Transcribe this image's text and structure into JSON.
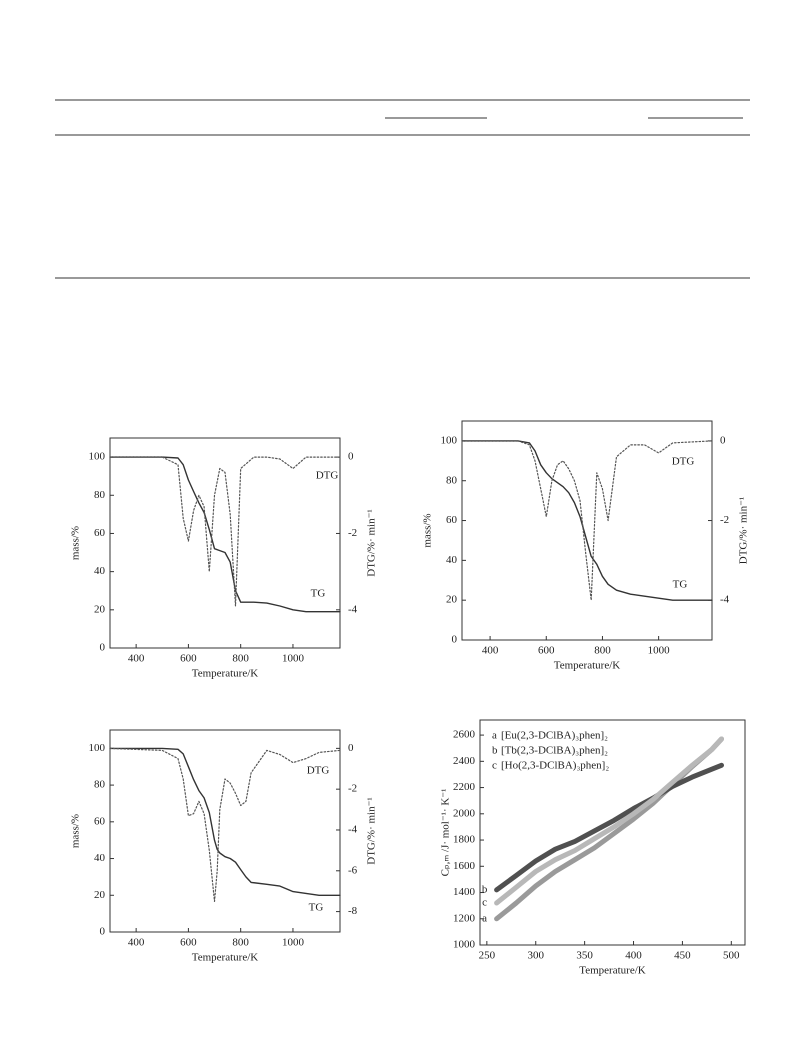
{
  "chart_data": [
    {
      "type": "line",
      "x_label": "Temperature/K",
      "y_label": "mass/%",
      "y2_label": "DTG/%· min⁻¹",
      "xlim": [
        300,
        1180
      ],
      "xticks": [
        400,
        600,
        800,
        1000
      ],
      "ylim": [
        0,
        110
      ],
      "yticks": [
        0,
        20,
        40,
        60,
        80,
        100
      ],
      "y2lim": [
        -5,
        0.5
      ],
      "y2ticks": [
        -4,
        -2,
        0
      ],
      "x": [
        300,
        500,
        560,
        580,
        600,
        620,
        640,
        660,
        680,
        700,
        720,
        740,
        760,
        780,
        800,
        850,
        900,
        950,
        1000,
        1050,
        1100,
        1180
      ],
      "series": [
        {
          "name": "TG",
          "color": "#333333",
          "line_style": "solid",
          "values": [
            100,
            100,
            99.5,
            96,
            88,
            82,
            76,
            71,
            62,
            52,
            51,
            50,
            45,
            30,
            24,
            24,
            23.5,
            22,
            20,
            19,
            19,
            19
          ]
        },
        {
          "name": "DTG",
          "color": "#555555",
          "line_style": "dotted",
          "axis": "y2",
          "values": [
            0,
            0,
            -0.2,
            -1.6,
            -2.2,
            -1.4,
            -1.0,
            -1.3,
            -3.0,
            -1.0,
            -0.3,
            -0.4,
            -1.5,
            -3.9,
            -0.3,
            0,
            0,
            -0.05,
            -0.3,
            0,
            0,
            0
          ]
        }
      ]
    },
    {
      "type": "line",
      "x_label": "Temperature/K",
      "y_label": "mass/%",
      "y2_label": "DTG/%· min⁻¹",
      "xlim": [
        300,
        1190
      ],
      "xticks": [
        400,
        600,
        800,
        1000
      ],
      "ylim": [
        0,
        110
      ],
      "yticks": [
        0,
        20,
        40,
        60,
        80,
        100
      ],
      "y2lim": [
        -5,
        0.5
      ],
      "y2ticks": [
        -4,
        -2,
        0
      ],
      "x": [
        300,
        500,
        540,
        560,
        580,
        600,
        620,
        640,
        660,
        680,
        700,
        720,
        740,
        760,
        780,
        800,
        820,
        850,
        900,
        950,
        1000,
        1050,
        1190
      ],
      "series": [
        {
          "name": "TG",
          "color": "#333333",
          "line_style": "solid",
          "values": [
            100,
            100,
            99,
            95,
            88,
            84,
            81,
            79,
            77,
            74,
            69,
            62,
            52,
            42,
            38,
            32,
            28,
            25,
            23,
            22,
            21,
            20,
            20
          ]
        },
        {
          "name": "DTG",
          "color": "#555555",
          "line_style": "dotted",
          "axis": "y2",
          "values": [
            0,
            0,
            -0.1,
            -0.5,
            -1.2,
            -1.9,
            -1.0,
            -0.6,
            -0.5,
            -0.7,
            -1.0,
            -1.5,
            -2.8,
            -4.0,
            -0.8,
            -1.2,
            -2.0,
            -0.4,
            -0.1,
            -0.1,
            -0.3,
            -0.05,
            0
          ]
        }
      ]
    },
    {
      "type": "line",
      "x_label": "Temperature/K",
      "y_label": "mass/%",
      "y2_label": "DTG/%· min⁻¹",
      "xlim": [
        300,
        1180
      ],
      "xticks": [
        400,
        600,
        800,
        1000
      ],
      "ylim": [
        0,
        110
      ],
      "yticks": [
        0,
        20,
        40,
        60,
        80,
        100
      ],
      "y2lim": [
        -9,
        0.9
      ],
      "y2ticks": [
        -8,
        -6,
        -4,
        -2,
        0
      ],
      "x": [
        300,
        500,
        560,
        580,
        600,
        620,
        640,
        660,
        680,
        700,
        710,
        720,
        740,
        760,
        780,
        800,
        820,
        840,
        900,
        950,
        1000,
        1050,
        1100,
        1180
      ],
      "series": [
        {
          "name": "TG",
          "color": "#333333",
          "line_style": "solid",
          "values": [
            100,
            100,
            99.5,
            97,
            90,
            83,
            77,
            73,
            65,
            50,
            45,
            43,
            41,
            40,
            38,
            34,
            30,
            27,
            26,
            25,
            22,
            21,
            20,
            20
          ]
        },
        {
          "name": "DTG",
          "color": "#555555",
          "line_style": "dotted",
          "axis": "y2",
          "values": [
            0,
            -0.1,
            -0.5,
            -1.5,
            -3.3,
            -3.2,
            -2.6,
            -3.2,
            -5,
            -7.5,
            -6,
            -3,
            -1.5,
            -1.7,
            -2.2,
            -2.8,
            -2.6,
            -1.2,
            -0.1,
            -0.3,
            -0.7,
            -0.5,
            -0.2,
            -0.1
          ]
        }
      ]
    },
    {
      "type": "line",
      "x_label": "Temperature/K",
      "y_label": "Cₚ,ₘ /J· mol⁻¹· K⁻¹",
      "xlim": [
        243,
        514
      ],
      "xticks": [
        250,
        300,
        350,
        400,
        450,
        500
      ],
      "ylim": [
        1000,
        2715
      ],
      "yticks": [
        1000,
        1200,
        1400,
        1600,
        1800,
        2000,
        2200,
        2400,
        2600
      ],
      "legend": "upper left",
      "x": [
        260,
        280,
        300,
        320,
        340,
        360,
        380,
        400,
        420,
        440,
        460,
        480,
        490
      ],
      "series": [
        {
          "label": "a",
          "name": "[Eu(2,3-DClBA)₃phen]₂",
          "color": "#9a9a9a",
          "line_style": "solid",
          "values": [
            1200,
            1320,
            1450,
            1560,
            1650,
            1740,
            1850,
            1960,
            2080,
            2220,
            2360,
            2490,
            2570
          ]
        },
        {
          "label": "b",
          "name": "[Tb(2,3-DClBA)₃phen]₂",
          "color": "#505050",
          "line_style": "solid",
          "values": [
            1420,
            1530,
            1640,
            1730,
            1790,
            1870,
            1950,
            2040,
            2120,
            2210,
            2280,
            2340,
            2370
          ]
        },
        {
          "label": "c",
          "name": "[Ho(2,3-DClBA)₃phen]₂",
          "color": "#b8b8b8",
          "line_style": "solid",
          "values": [
            1320,
            1440,
            1560,
            1650,
            1720,
            1810,
            1900,
            2000,
            2110,
            2240,
            2370,
            2490,
            2570
          ]
        }
      ]
    }
  ]
}
